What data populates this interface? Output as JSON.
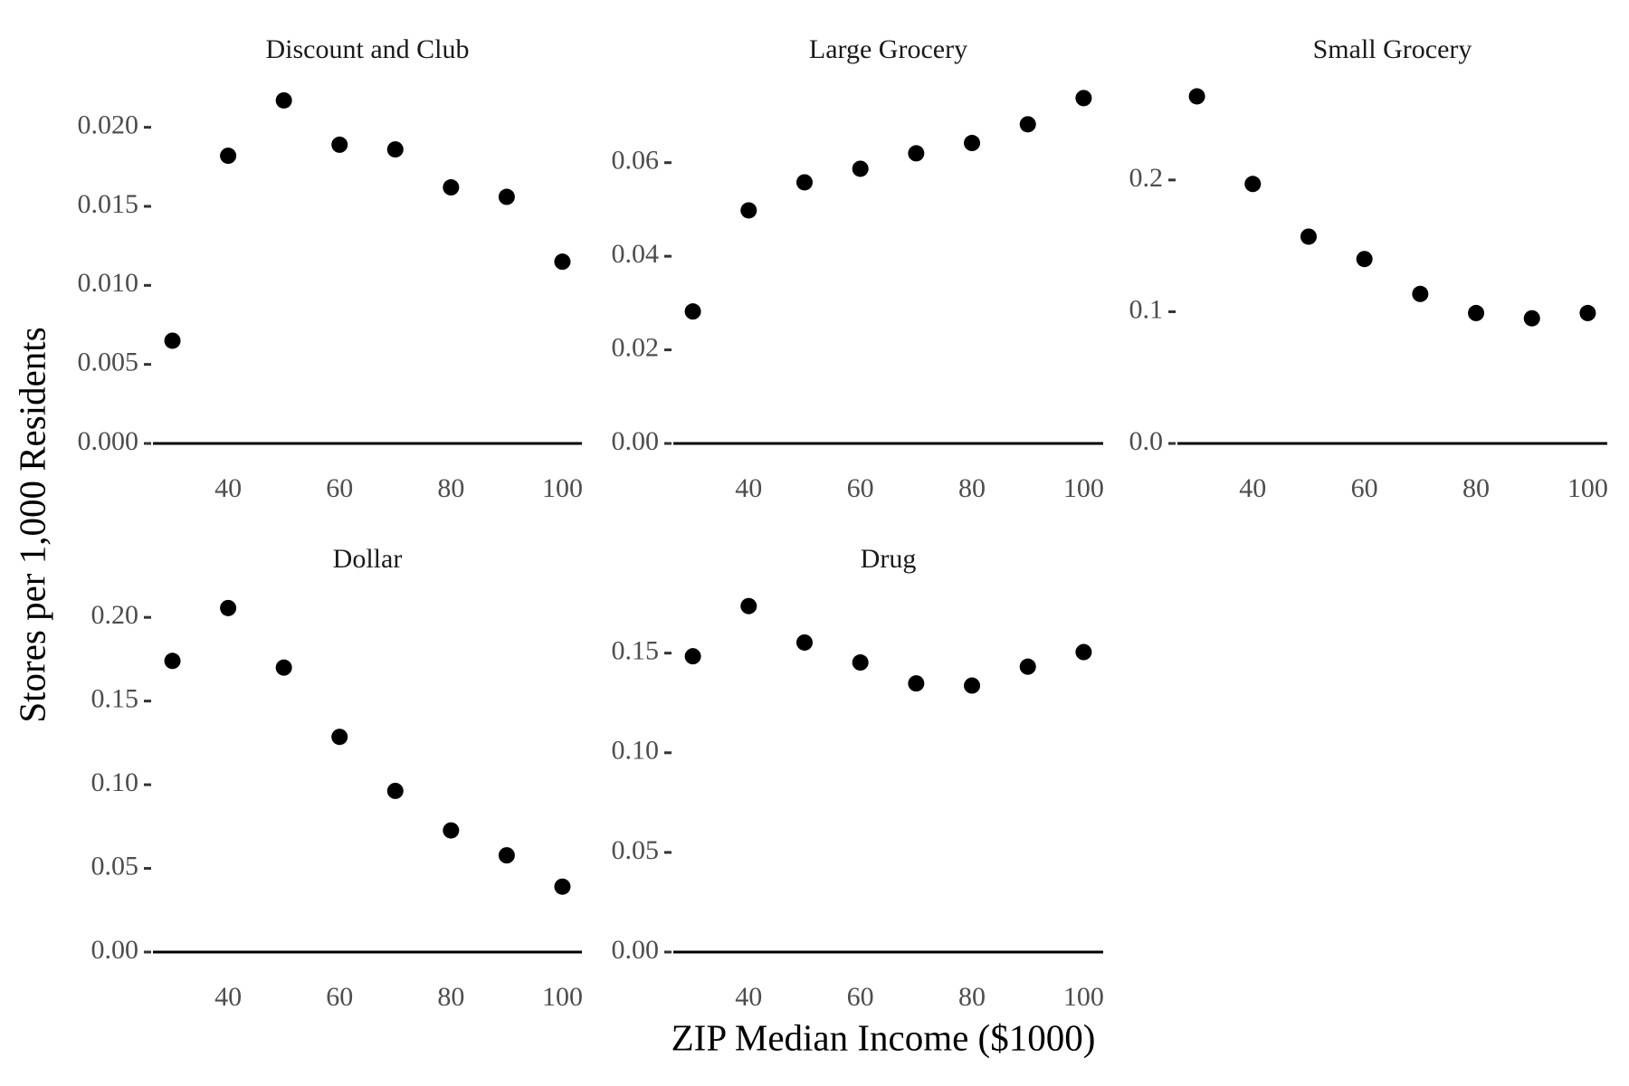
{
  "xlabel": "ZIP Median Income ($1000)",
  "ylabel": "Stores per 1,000 Residents",
  "chart_data": [
    {
      "type": "scatter",
      "title": "Discount and Club",
      "color": "#000000",
      "x": [
        30,
        40,
        50,
        60,
        70,
        80,
        90,
        100
      ],
      "values": [
        0.0065,
        0.0182,
        0.0217,
        0.0189,
        0.0186,
        0.0162,
        0.0156,
        0.0115
      ],
      "xlim": [
        26.5,
        103.5
      ],
      "xticks": [
        40,
        60,
        80,
        100
      ],
      "ylim": [
        0,
        0.0225
      ],
      "yticks": [
        {
          "value": 0,
          "label": "0.000"
        },
        {
          "value": 0.005,
          "label": "0.005"
        },
        {
          "value": 0.01,
          "label": "0.010"
        },
        {
          "value": 0.015,
          "label": "0.015"
        },
        {
          "value": 0.02,
          "label": "0.020"
        }
      ]
    },
    {
      "type": "scatter",
      "title": "Large Grocery",
      "color": "#000000",
      "x": [
        30,
        40,
        50,
        60,
        70,
        80,
        90,
        100
      ],
      "values": [
        0.0282,
        0.0498,
        0.0558,
        0.0587,
        0.062,
        0.0642,
        0.0682,
        0.0738
      ],
      "xlim": [
        26.5,
        103.5
      ],
      "xticks": [
        40,
        60,
        80,
        100
      ],
      "ylim": [
        0,
        0.076
      ],
      "yticks": [
        {
          "value": 0,
          "label": "0.00"
        },
        {
          "value": 0.02,
          "label": "0.02"
        },
        {
          "value": 0.04,
          "label": "0.04"
        },
        {
          "value": 0.06,
          "label": "0.06"
        }
      ]
    },
    {
      "type": "scatter",
      "title": "Small Grocery",
      "color": "#000000",
      "x": [
        30,
        40,
        50,
        60,
        70,
        80,
        90,
        100
      ],
      "values": [
        0.2635,
        0.197,
        0.157,
        0.14,
        0.1135,
        0.099,
        0.095,
        0.099
      ],
      "xlim": [
        26.5,
        103.5
      ],
      "xticks": [
        40,
        60,
        80,
        100
      ],
      "ylim": [
        0,
        0.27
      ],
      "yticks": [
        {
          "value": 0,
          "label": "0.0"
        },
        {
          "value": 0.1,
          "label": "0.1"
        },
        {
          "value": 0.2,
          "label": "0.2"
        }
      ]
    },
    {
      "type": "scatter",
      "title": "Dollar",
      "color": "#000000",
      "x": [
        30,
        40,
        50,
        60,
        70,
        80,
        90,
        100
      ],
      "values": [
        0.174,
        0.2056,
        0.17,
        0.1286,
        0.0963,
        0.0727,
        0.0578,
        0.0391
      ],
      "xlim": [
        26.5,
        103.5
      ],
      "xticks": [
        40,
        60,
        80,
        100
      ],
      "ylim": [
        0,
        0.212
      ],
      "yticks": [
        {
          "value": 0,
          "label": "0.00"
        },
        {
          "value": 0.05,
          "label": "0.05"
        },
        {
          "value": 0.1,
          "label": "0.10"
        },
        {
          "value": 0.15,
          "label": "0.15"
        },
        {
          "value": 0.2,
          "label": "0.20"
        }
      ]
    },
    {
      "type": "scatter",
      "title": "Drug",
      "color": "#000000",
      "x": [
        30,
        40,
        50,
        60,
        70,
        80,
        90,
        100
      ],
      "values": [
        0.1484,
        0.1736,
        0.1553,
        0.1453,
        0.1348,
        0.1337,
        0.1432,
        0.1505
      ],
      "xlim": [
        26.5,
        103.5
      ],
      "xticks": [
        40,
        60,
        80,
        100
      ],
      "ylim": [
        0,
        0.178
      ],
      "yticks": [
        {
          "value": 0,
          "label": "0.00"
        },
        {
          "value": 0.05,
          "label": "0.05"
        },
        {
          "value": 0.1,
          "label": "0.10"
        },
        {
          "value": 0.15,
          "label": "0.15"
        }
      ]
    }
  ]
}
